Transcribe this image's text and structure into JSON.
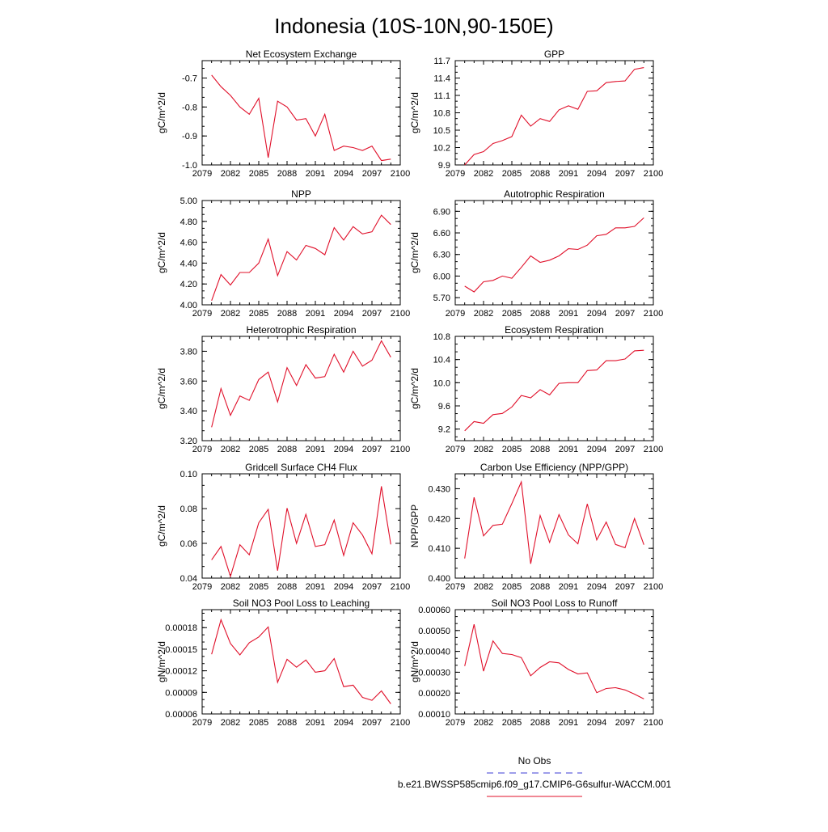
{
  "figure": {
    "title": "Indonesia (10S-10N,90-150E)",
    "legend_obs_label": "No Obs",
    "legend_model_label": "b.e21.BWSSP585cmip6.f09_g17.CMIP6-G6sulfur-WACCM.001",
    "obs_color": "#3b3bd6",
    "model_color": "#e0102a"
  },
  "chart_data": [
    {
      "type": "line",
      "title": "Net Ecosystem Exchange",
      "ylabel": "gC/m^2/d",
      "xlim": [
        2079,
        2100
      ],
      "ylim": [
        -1.0,
        -0.64
      ],
      "xticks": [
        2079,
        2082,
        2085,
        2088,
        2091,
        2094,
        2097,
        2100
      ],
      "yticks": [
        -1.0,
        -0.9,
        -0.8,
        -0.7
      ],
      "ytick_labels": [
        "-1.0",
        "-0.9",
        "-0.8",
        "-0.7"
      ],
      "x": [
        2080,
        2081,
        2082,
        2083,
        2084,
        2085,
        2086,
        2087,
        2088,
        2089,
        2090,
        2091,
        2092,
        2093,
        2094,
        2095,
        2096,
        2097,
        2098,
        2099
      ],
      "series": [
        {
          "name": "b.e21.BWSSP585cmip6.f09_g17.CMIP6-G6sulfur-WACCM.001",
          "values": [
            -0.69,
            -0.73,
            -0.76,
            -0.8,
            -0.825,
            -0.77,
            -0.975,
            -0.78,
            -0.8,
            -0.845,
            -0.84,
            -0.9,
            -0.825,
            -0.95,
            -0.935,
            -0.94,
            -0.95,
            -0.935,
            -0.985,
            -0.98
          ]
        }
      ]
    },
    {
      "type": "line",
      "title": "GPP",
      "ylabel": "gC/m^2/d",
      "xlim": [
        2079,
        2100
      ],
      "ylim": [
        9.9,
        11.7
      ],
      "xticks": [
        2079,
        2082,
        2085,
        2088,
        2091,
        2094,
        2097,
        2100
      ],
      "yticks": [
        9.9,
        10.2,
        10.5,
        10.8,
        11.1,
        11.4,
        11.7
      ],
      "ytick_labels": [
        "9.9",
        "10.2",
        "10.5",
        "10.8",
        "11.1",
        "11.4",
        "11.7"
      ],
      "x": [
        2080,
        2081,
        2082,
        2083,
        2084,
        2085,
        2086,
        2087,
        2088,
        2089,
        2090,
        2091,
        2092,
        2093,
        2094,
        2095,
        2096,
        2097,
        2098,
        2099
      ],
      "series": [
        {
          "name": "b.e21.BWSSP585cmip6.f09_g17.CMIP6-G6sulfur-WACCM.001",
          "values": [
            9.9,
            10.08,
            10.13,
            10.27,
            10.32,
            10.39,
            10.76,
            10.57,
            10.7,
            10.65,
            10.85,
            10.92,
            10.86,
            11.17,
            11.18,
            11.32,
            11.34,
            11.35,
            11.55,
            11.58
          ]
        }
      ]
    },
    {
      "type": "line",
      "title": "NPP",
      "ylabel": "gC/m^2/d",
      "xlim": [
        2079,
        2100
      ],
      "ylim": [
        4.0,
        5.0
      ],
      "xticks": [
        2079,
        2082,
        2085,
        2088,
        2091,
        2094,
        2097,
        2100
      ],
      "yticks": [
        4.0,
        4.2,
        4.4,
        4.6,
        4.8,
        5.0
      ],
      "ytick_labels": [
        "4.00",
        "4.20",
        "4.40",
        "4.60",
        "4.80",
        "5.00"
      ],
      "x": [
        2080,
        2081,
        2082,
        2083,
        2084,
        2085,
        2086,
        2087,
        2088,
        2089,
        2090,
        2091,
        2092,
        2093,
        2094,
        2095,
        2096,
        2097,
        2098,
        2099
      ],
      "series": [
        {
          "name": "b.e21.BWSSP585cmip6.f09_g17.CMIP6-G6sulfur-WACCM.001",
          "values": [
            4.04,
            4.29,
            4.19,
            4.31,
            4.31,
            4.4,
            4.63,
            4.28,
            4.51,
            4.43,
            4.57,
            4.54,
            4.48,
            4.74,
            4.62,
            4.75,
            4.68,
            4.7,
            4.86,
            4.77
          ]
        }
      ]
    },
    {
      "type": "line",
      "title": "Autotrophic Respiration",
      "ylabel": "gC/m^2/d",
      "xlim": [
        2079,
        2100
      ],
      "ylim": [
        5.6,
        7.05
      ],
      "xticks": [
        2079,
        2082,
        2085,
        2088,
        2091,
        2094,
        2097,
        2100
      ],
      "yticks": [
        5.7,
        6.0,
        6.3,
        6.6,
        6.9
      ],
      "ytick_labels": [
        "5.70",
        "6.00",
        "6.30",
        "6.60",
        "6.90"
      ],
      "x": [
        2080,
        2081,
        2082,
        2083,
        2084,
        2085,
        2086,
        2087,
        2088,
        2089,
        2090,
        2091,
        2092,
        2093,
        2094,
        2095,
        2096,
        2097,
        2098,
        2099
      ],
      "series": [
        {
          "name": "b.e21.BWSSP585cmip6.f09_g17.CMIP6-G6sulfur-WACCM.001",
          "values": [
            5.86,
            5.78,
            5.92,
            5.94,
            6.0,
            5.97,
            6.12,
            6.28,
            6.19,
            6.22,
            6.28,
            6.38,
            6.37,
            6.43,
            6.56,
            6.58,
            6.67,
            6.67,
            6.69,
            6.81
          ]
        }
      ]
    },
    {
      "type": "line",
      "title": "Heterotrophic Respiration",
      "ylabel": "gC/m^2/d",
      "xlim": [
        2079,
        2100
      ],
      "ylim": [
        3.2,
        3.9
      ],
      "xticks": [
        2079,
        2082,
        2085,
        2088,
        2091,
        2094,
        2097,
        2100
      ],
      "yticks": [
        3.2,
        3.4,
        3.6,
        3.8
      ],
      "ytick_labels": [
        "3.20",
        "3.40",
        "3.60",
        "3.80"
      ],
      "x": [
        2080,
        2081,
        2082,
        2083,
        2084,
        2085,
        2086,
        2087,
        2088,
        2089,
        2090,
        2091,
        2092,
        2093,
        2094,
        2095,
        2096,
        2097,
        2098,
        2099
      ],
      "series": [
        {
          "name": "b.e21.BWSSP585cmip6.f09_g17.CMIP6-G6sulfur-WACCM.001",
          "values": [
            3.29,
            3.55,
            3.37,
            3.5,
            3.47,
            3.61,
            3.66,
            3.46,
            3.69,
            3.57,
            3.71,
            3.62,
            3.63,
            3.78,
            3.66,
            3.8,
            3.7,
            3.74,
            3.87,
            3.76
          ]
        }
      ]
    },
    {
      "type": "line",
      "title": "Ecosystem Respiration",
      "ylabel": "gC/m^2/d",
      "xlim": [
        2079,
        2100
      ],
      "ylim": [
        9.0,
        10.8
      ],
      "xticks": [
        2079,
        2082,
        2085,
        2088,
        2091,
        2094,
        2097,
        2100
      ],
      "yticks": [
        9.2,
        9.6,
        10.0,
        10.4,
        10.8
      ],
      "ytick_labels": [
        "9.2",
        "9.6",
        "10.0",
        "10.4",
        "10.8"
      ],
      "x": [
        2080,
        2081,
        2082,
        2083,
        2084,
        2085,
        2086,
        2087,
        2088,
        2089,
        2090,
        2091,
        2092,
        2093,
        2094,
        2095,
        2096,
        2097,
        2098,
        2099
      ],
      "series": [
        {
          "name": "b.e21.BWSSP585cmip6.f09_g17.CMIP6-G6sulfur-WACCM.001",
          "values": [
            9.17,
            9.33,
            9.3,
            9.45,
            9.47,
            9.58,
            9.78,
            9.74,
            9.88,
            9.79,
            9.99,
            10.0,
            10.0,
            10.21,
            10.22,
            10.38,
            10.38,
            10.41,
            10.55,
            10.56
          ]
        }
      ]
    },
    {
      "type": "line",
      "title": "Gridcell Surface CH4 Flux",
      "ylabel": "gC/m^2/d",
      "xlim": [
        2079,
        2100
      ],
      "ylim": [
        0.04,
        0.1
      ],
      "xticks": [
        2079,
        2082,
        2085,
        2088,
        2091,
        2094,
        2097,
        2100
      ],
      "yticks": [
        0.04,
        0.06,
        0.08,
        0.1
      ],
      "ytick_labels": [
        "0.04",
        "0.06",
        "0.08",
        "0.10"
      ],
      "x": [
        2080,
        2081,
        2082,
        2083,
        2084,
        2085,
        2086,
        2087,
        2088,
        2089,
        2090,
        2091,
        2092,
        2093,
        2094,
        2095,
        2096,
        2097,
        2098,
        2099
      ],
      "series": [
        {
          "name": "b.e21.BWSSP585cmip6.f09_g17.CMIP6-G6sulfur-WACCM.001",
          "values": [
            0.0505,
            0.0582,
            0.041,
            0.0592,
            0.0534,
            0.0718,
            0.0796,
            0.0443,
            0.0803,
            0.06,
            0.0767,
            0.0582,
            0.0592,
            0.0734,
            0.053,
            0.0718,
            0.0648,
            0.054,
            0.0928,
            0.0594
          ]
        }
      ]
    },
    {
      "type": "line",
      "title": "Carbon Use Efficiency (NPP/GPP)",
      "ylabel": "NPP/GPP",
      "xlim": [
        2079,
        2100
      ],
      "ylim": [
        0.4,
        0.435
      ],
      "xticks": [
        2079,
        2082,
        2085,
        2088,
        2091,
        2094,
        2097,
        2100
      ],
      "yticks": [
        0.4,
        0.41,
        0.42,
        0.43
      ],
      "ytick_labels": [
        "0.400",
        "0.410",
        "0.420",
        "0.430"
      ],
      "x": [
        2080,
        2081,
        2082,
        2083,
        2084,
        2085,
        2086,
        2087,
        2088,
        2089,
        2090,
        2091,
        2092,
        2093,
        2094,
        2095,
        2096,
        2097,
        2098,
        2099
      ],
      "series": [
        {
          "name": "b.e21.BWSSP585cmip6.f09_g17.CMIP6-G6sulfur-WACCM.001",
          "values": [
            0.4066,
            0.4271,
            0.4142,
            0.4177,
            0.4181,
            0.425,
            0.4323,
            0.4048,
            0.421,
            0.412,
            0.4213,
            0.4145,
            0.4115,
            0.4249,
            0.4128,
            0.4188,
            0.4113,
            0.4102,
            0.42,
            0.4112
          ]
        }
      ]
    },
    {
      "type": "line",
      "title": "Soil NO3 Pool Loss to Leaching",
      "ylabel": "gN/m^2/d",
      "xlim": [
        2079,
        2100
      ],
      "ylim": [
        6e-05,
        0.000205
      ],
      "xticks": [
        2079,
        2082,
        2085,
        2088,
        2091,
        2094,
        2097,
        2100
      ],
      "yticks": [
        6e-05,
        9e-05,
        0.00012,
        0.00015,
        0.00018
      ],
      "ytick_labels": [
        "0.00006",
        "0.00009",
        "0.00012",
        "0.00015",
        "0.00018"
      ],
      "x": [
        2080,
        2081,
        2082,
        2083,
        2084,
        2085,
        2086,
        2087,
        2088,
        2089,
        2090,
        2091,
        2092,
        2093,
        2094,
        2095,
        2096,
        2097,
        2098,
        2099
      ],
      "series": [
        {
          "name": "b.e21.BWSSP585cmip6.f09_g17.CMIP6-G6sulfur-WACCM.001",
          "values": [
            0.000143,
            0.000191,
            0.000158,
            0.000142,
            0.000159,
            0.000167,
            0.000181,
            0.000104,
            0.000136,
            0.000125,
            0.000135,
            0.000118,
            0.00012,
            0.000137,
            9.8e-05,
            0.0001,
            8.3e-05,
            7.9e-05,
            9.2e-05,
            7.4e-05
          ]
        }
      ]
    },
    {
      "type": "line",
      "title": "Soil NO3 Pool Loss to Runoff",
      "ylabel": "gN/m^2/d",
      "xlim": [
        2079,
        2100
      ],
      "ylim": [
        0.0001,
        0.0006
      ],
      "xticks": [
        2079,
        2082,
        2085,
        2088,
        2091,
        2094,
        2097,
        2100
      ],
      "yticks": [
        0.0001,
        0.0002,
        0.0003,
        0.0004,
        0.0005,
        0.0006
      ],
      "ytick_labels": [
        "0.00010",
        "0.00020",
        "0.00030",
        "0.00040",
        "0.00050",
        "0.00060"
      ],
      "x": [
        2080,
        2081,
        2082,
        2083,
        2084,
        2085,
        2086,
        2087,
        2088,
        2089,
        2090,
        2091,
        2092,
        2093,
        2094,
        2095,
        2096,
        2097,
        2098,
        2099
      ],
      "series": [
        {
          "name": "b.e21.BWSSP585cmip6.f09_g17.CMIP6-G6sulfur-WACCM.001",
          "values": [
            0.00033,
            0.00053,
            0.000305,
            0.00045,
            0.00039,
            0.000385,
            0.00037,
            0.000283,
            0.000323,
            0.00035,
            0.000345,
            0.000313,
            0.000292,
            0.000297,
            0.000202,
            0.000222,
            0.000226,
            0.000215,
            0.000195,
            0.000172
          ]
        }
      ]
    }
  ]
}
